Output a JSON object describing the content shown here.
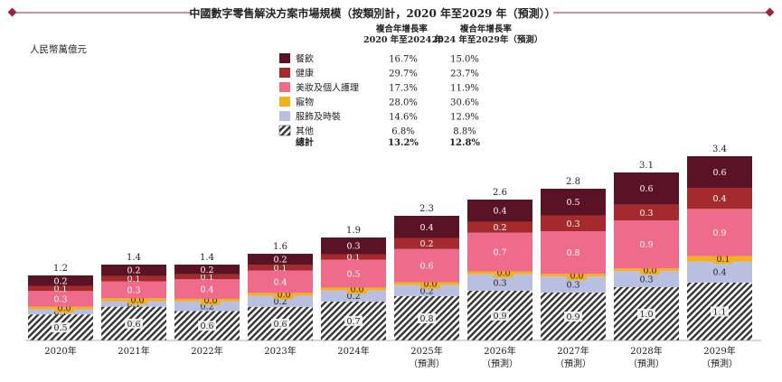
{
  "colors": {
    "accent": "#a51f3a",
    "dining": "#5a1225",
    "health": "#a52a2e",
    "beauty": "#ef6b8c",
    "pet": "#f2b21c",
    "apparel": "#b9bfe0",
    "other_stripe": "#333333",
    "value_badge_pet": "#f2b21c"
  },
  "chart_data": {
    "type": "bar",
    "stacked": true,
    "title": "中國數字零售解決方案市場規模（按類別計，2020 年至2029 年（預測））",
    "unit_label": "人民幣萬億元",
    "cagr_headers": [
      "複合年增長率\n2020 年至2024 年",
      "複合年增長率\n2024 年至2029年（預測）"
    ],
    "categories": [
      {
        "line1": "2020年",
        "line2": ""
      },
      {
        "line1": "2021年",
        "line2": ""
      },
      {
        "line1": "2022年",
        "line2": ""
      },
      {
        "line1": "2023年",
        "line2": ""
      },
      {
        "line1": "2024年",
        "line2": ""
      },
      {
        "line1": "2025年",
        "line2": "（預測）"
      },
      {
        "line1": "2026年",
        "line2": "（預測）"
      },
      {
        "line1": "2027年",
        "line2": "（預測）"
      },
      {
        "line1": "2028年",
        "line2": "（預測）"
      },
      {
        "line1": "2029年",
        "line2": "（預測）"
      }
    ],
    "totals": [
      "1.2",
      "1.4",
      "1.4",
      "1.6",
      "1.9",
      "2.3",
      "2.6",
      "2.8",
      "3.1",
      "3.4"
    ],
    "total_values": [
      1.2,
      1.4,
      1.4,
      1.6,
      1.9,
      2.3,
      2.6,
      2.8,
      3.1,
      3.4
    ],
    "series": [
      {
        "name": "其他",
        "key": "other",
        "cagr_2020_2024": "6.8%",
        "cagr_2024_2029": "8.8%",
        "values": [
          0.5,
          0.6,
          0.6,
          0.6,
          0.7,
          0.8,
          0.9,
          0.9,
          1.0,
          1.1
        ],
        "labels": [
          "0.5",
          "0.6",
          "0.6",
          "0.6",
          "0.7",
          "0.8",
          "0.9",
          "0.9",
          "1.0",
          "1.1"
        ]
      },
      {
        "name": "服飾及時裝",
        "key": "apparel",
        "cagr_2020_2024": "14.6%",
        "cagr_2024_2029": "12.9%",
        "values": [
          0.1,
          0.1,
          0.2,
          0.2,
          0.2,
          0.2,
          0.3,
          0.3,
          0.3,
          0.4
        ],
        "labels": [
          "0.1",
          "0.1",
          "0.2",
          "0.2",
          "0.2",
          "0.2",
          "0.3",
          "0.3",
          "0.3",
          "0.4"
        ]
      },
      {
        "name": "寵物",
        "key": "pet",
        "cagr_2020_2024": "28.0%",
        "cagr_2024_2029": "30.6%",
        "values": [
          0.0,
          0.0,
          0.0,
          0.0,
          0.0,
          0.0,
          0.0,
          0.0,
          0.0,
          0.1
        ],
        "labels": [
          "0.0",
          "0.0",
          "0.0",
          "0.0",
          "0.0",
          "0.0",
          "0.0",
          "0.0",
          "0.0",
          "0.1"
        ]
      },
      {
        "name": "美妝及個人護理",
        "key": "beauty",
        "cagr_2020_2024": "17.3%",
        "cagr_2024_2029": "11.9%",
        "values": [
          0.3,
          0.3,
          0.4,
          0.4,
          0.5,
          0.6,
          0.7,
          0.8,
          0.9,
          0.9
        ],
        "labels": [
          "0.3",
          "0.3",
          "0.4",
          "0.4",
          "0.5",
          "0.6",
          "0.7",
          "0.8",
          "0.9",
          "0.9"
        ]
      },
      {
        "name": "健康",
        "key": "health",
        "cagr_2020_2024": "29.7%",
        "cagr_2024_2029": "23.7%",
        "values": [
          0.1,
          0.1,
          0.1,
          0.1,
          0.1,
          0.2,
          0.2,
          0.3,
          0.3,
          0.4
        ],
        "labels": [
          "0.1",
          "0.1",
          "0.1",
          "0.1",
          "0.1",
          "0.2",
          "0.2",
          "0.3",
          "0.3",
          "0.4"
        ]
      },
      {
        "name": "餐飲",
        "key": "dining",
        "cagr_2020_2024": "16.7%",
        "cagr_2024_2029": "15.0%",
        "values": [
          0.2,
          0.2,
          0.2,
          0.2,
          0.3,
          0.4,
          0.4,
          0.5,
          0.6,
          0.6
        ],
        "labels": [
          "0.2",
          "0.2",
          "0.2",
          "0.2",
          "0.3",
          "0.4",
          "0.4",
          "0.5",
          "0.6",
          "0.6"
        ]
      }
    ],
    "legend_order": [
      "dining",
      "health",
      "beauty",
      "pet",
      "apparel",
      "other"
    ],
    "total_row": {
      "name": "總計",
      "cagr_2020_2024": "13.2%",
      "cagr_2024_2029": "12.8%"
    },
    "ylim": [
      0,
      3.4
    ],
    "grid": false,
    "legend_position": "top-center"
  }
}
